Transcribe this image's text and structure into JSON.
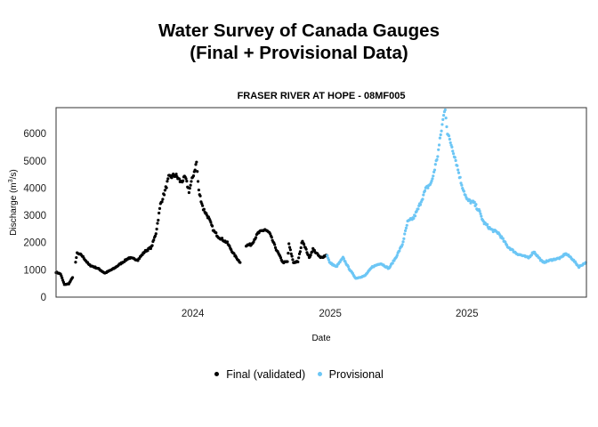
{
  "chart_data": {
    "type": "scatter",
    "title": "Water Survey of Canada Gauges",
    "title_line2": "(Final + Provisional Data)",
    "subtitle": "FRASER RIVER AT HOPE - 08MF005",
    "xlabel": "Date",
    "ylabel": "Discharge (m³/s)",
    "ylabel_parts": {
      "pre": "Discharge (m",
      "sup": "3",
      "post": "/s)"
    },
    "x_unit": "days since 2024-01-01",
    "xlim": [
      0,
      706
    ],
    "ylim": [
      0,
      6950
    ],
    "grid": false,
    "legend_position": "bottom",
    "y_ticks": [
      0,
      1000,
      2000,
      3000,
      4000,
      5000,
      6000
    ],
    "x_ticks": [
      {
        "x": 182,
        "label": "2024"
      },
      {
        "x": 365,
        "label": "2025"
      },
      {
        "x": 547,
        "label": "2025"
      }
    ],
    "series": [
      {
        "name": "Final (validated)",
        "color": "#000000",
        "points": [
          [
            0,
            915
          ],
          [
            6,
            850
          ],
          [
            11,
            460
          ],
          [
            17,
            490
          ],
          [
            22,
            720
          ],
          null,
          [
            26,
            1300
          ],
          [
            28,
            1600
          ],
          [
            34,
            1540
          ],
          [
            44,
            1180
          ],
          [
            56,
            1050
          ],
          [
            65,
            880
          ],
          [
            77,
            1050
          ],
          [
            85,
            1210
          ],
          [
            97,
            1440
          ],
          [
            109,
            1370
          ],
          [
            118,
            1670
          ],
          [
            127,
            1830
          ],
          [
            133,
            2350
          ],
          [
            139,
            3400
          ],
          [
            145,
            3890
          ],
          [
            150,
            4380
          ],
          [
            159,
            4480
          ],
          [
            166,
            4220
          ],
          [
            172,
            4380
          ],
          [
            177,
            3890
          ],
          [
            184,
            4610
          ],
          [
            187,
            4950
          ],
          [
            190,
            3890
          ],
          [
            196,
            3240
          ],
          [
            203,
            2910
          ],
          [
            210,
            2420
          ],
          [
            216,
            2220
          ],
          [
            228,
            1990
          ],
          [
            236,
            1600
          ],
          [
            245,
            1270
          ],
          null,
          [
            253,
            1900
          ],
          [
            260,
            1930
          ],
          [
            269,
            2350
          ],
          [
            278,
            2480
          ],
          [
            284,
            2350
          ],
          [
            293,
            1760
          ],
          [
            302,
            1270
          ],
          [
            308,
            1300
          ],
          [
            310,
            1930
          ],
          [
            316,
            1270
          ],
          [
            322,
            1300
          ],
          [
            328,
            2090
          ],
          [
            337,
            1440
          ],
          [
            342,
            1760
          ],
          [
            352,
            1440
          ],
          [
            360,
            1540
          ]
        ]
      },
      {
        "name": "Provisional",
        "color": "#6CC6F5",
        "points": [
          [
            361,
            1540
          ],
          [
            364,
            1270
          ],
          [
            373,
            1110
          ],
          [
            382,
            1440
          ],
          [
            390,
            1050
          ],
          [
            399,
            690
          ],
          [
            411,
            780
          ],
          [
            421,
            1110
          ],
          [
            432,
            1240
          ],
          [
            443,
            1050
          ],
          [
            452,
            1440
          ],
          [
            461,
            1930
          ],
          [
            468,
            2750
          ],
          [
            476,
            2910
          ],
          [
            482,
            3240
          ],
          [
            492,
            3950
          ],
          [
            500,
            4220
          ],
          [
            508,
            5200
          ],
          [
            515,
            6500
          ],
          [
            518,
            6930
          ],
          [
            521,
            6010
          ],
          [
            527,
            5520
          ],
          [
            532,
            5030
          ],
          [
            539,
            4220
          ],
          [
            547,
            3560
          ],
          [
            556,
            3460
          ],
          [
            563,
            3170
          ],
          [
            569,
            2750
          ],
          [
            579,
            2480
          ],
          [
            589,
            2350
          ],
          [
            601,
            1860
          ],
          [
            613,
            1600
          ],
          [
            629,
            1440
          ],
          [
            636,
            1670
          ],
          [
            648,
            1270
          ],
          [
            660,
            1370
          ],
          [
            672,
            1440
          ],
          [
            678,
            1600
          ],
          [
            686,
            1440
          ],
          [
            696,
            1110
          ],
          [
            705,
            1270
          ]
        ]
      }
    ]
  },
  "legend": {
    "items": [
      {
        "label": "Final (validated)",
        "color": "#000000"
      },
      {
        "label": "Provisional",
        "color": "#6CC6F5"
      }
    ]
  }
}
